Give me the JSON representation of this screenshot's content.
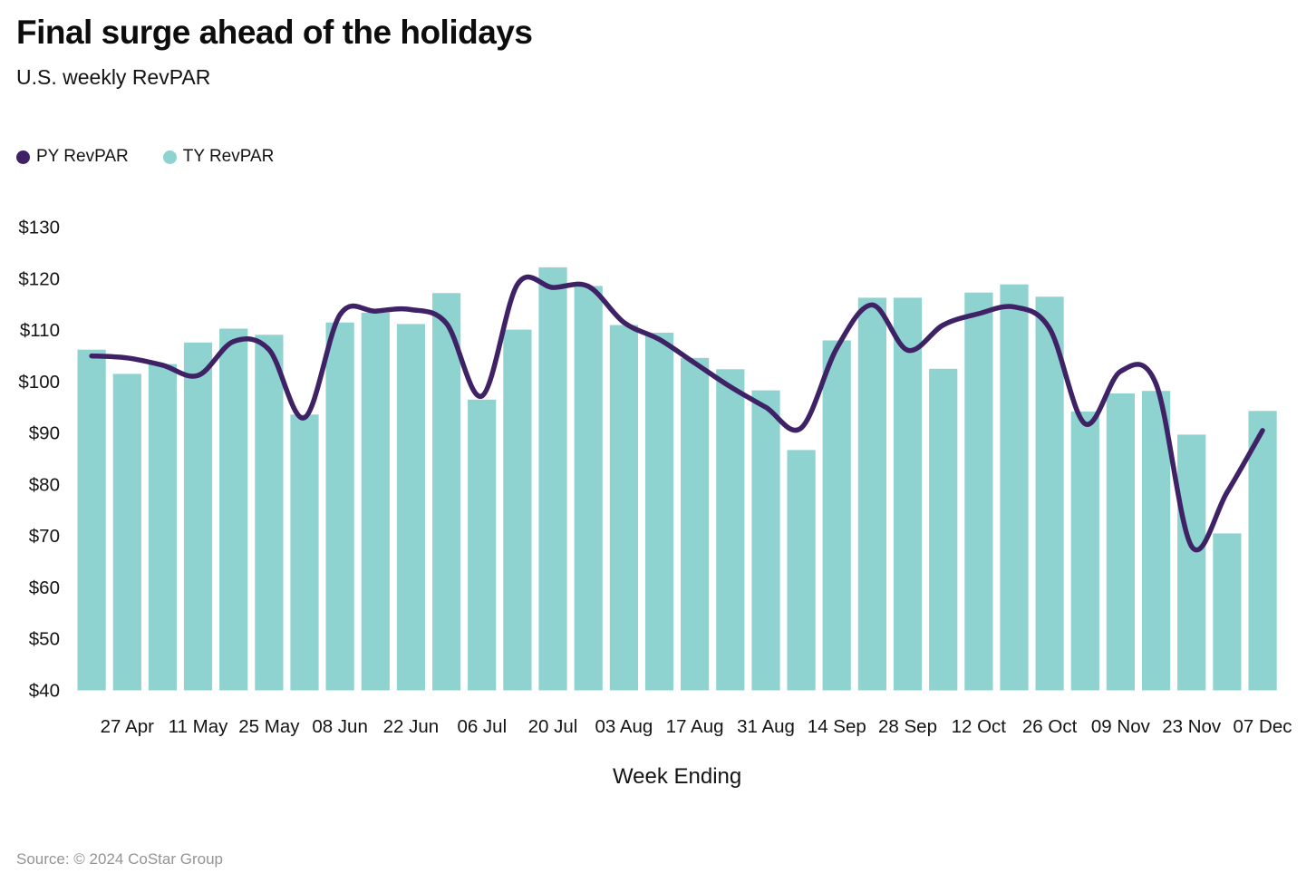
{
  "title": "Final surge ahead of the holidays",
  "subtitle": "U.S. weekly RevPAR",
  "source": "Source: © 2024 CoStar Group",
  "legend": [
    {
      "label": "PY RevPAR",
      "color": "#3F2166"
    },
    {
      "label": "TY RevPAR",
      "color": "#8ED3CF"
    }
  ],
  "chart_data": {
    "type": "bar",
    "title": "Final surge ahead of the holidays",
    "subtitle": "U.S. weekly RevPAR",
    "xlabel": "Week Ending",
    "ylabel": "",
    "ylim": [
      40,
      130
    ],
    "y_tick_step": 10,
    "y_tick_prefix": "$",
    "grid": false,
    "legend_position": "top-left",
    "x": [
      "20 Apr",
      "27 Apr",
      "04 May",
      "11 May",
      "18 May",
      "25 May",
      "01 Jun",
      "08 Jun",
      "15 Jun",
      "22 Jun",
      "29 Jun",
      "06 Jul",
      "13 Jul",
      "20 Jul",
      "27 Jul",
      "03 Aug",
      "10 Aug",
      "17 Aug",
      "24 Aug",
      "31 Aug",
      "07 Sep",
      "14 Sep",
      "21 Sep",
      "28 Sep",
      "05 Oct",
      "12 Oct",
      "19 Oct",
      "26 Oct",
      "02 Nov",
      "09 Nov",
      "16 Nov",
      "23 Nov",
      "30 Nov",
      "07 Dec"
    ],
    "x_tick_labels": [
      "27 Apr",
      "11 May",
      "25 May",
      "08 Jun",
      "22 Jun",
      "06 Jul",
      "20 Jul",
      "03 Aug",
      "17 Aug",
      "31 Aug",
      "14 Sep",
      "28 Sep",
      "12 Oct",
      "26 Oct",
      "09 Nov",
      "23 Nov",
      "07 Dec"
    ],
    "series": [
      {
        "name": "TY RevPAR",
        "render": "bar",
        "color": "#8ED3CF",
        "values": [
          106.2,
          101.5,
          103.4,
          107.6,
          110.3,
          109.1,
          93.6,
          111.5,
          113.4,
          111.2,
          117.2,
          96.5,
          110.1,
          122.2,
          118.6,
          111.0,
          109.5,
          104.6,
          102.4,
          98.3,
          86.7,
          108.0,
          116.3,
          116.3,
          102.5,
          117.3,
          118.9,
          116.5,
          94.2,
          97.7,
          98.2,
          89.7,
          70.5,
          94.3
        ]
      },
      {
        "name": "PY RevPAR",
        "render": "line",
        "color": "#3F2166",
        "values": [
          105.0,
          104.6,
          103.2,
          101.2,
          107.8,
          106.2,
          93.0,
          113.0,
          113.7,
          114.0,
          111.3,
          97.2,
          118.9,
          118.3,
          118.5,
          111.5,
          108.2,
          103.6,
          99.0,
          95.0,
          91.0,
          106.5,
          114.9,
          106.1,
          111.0,
          113.2,
          114.5,
          110.3,
          91.8,
          102.0,
          99.5,
          68.0,
          78.5,
          90.5
        ]
      }
    ]
  }
}
